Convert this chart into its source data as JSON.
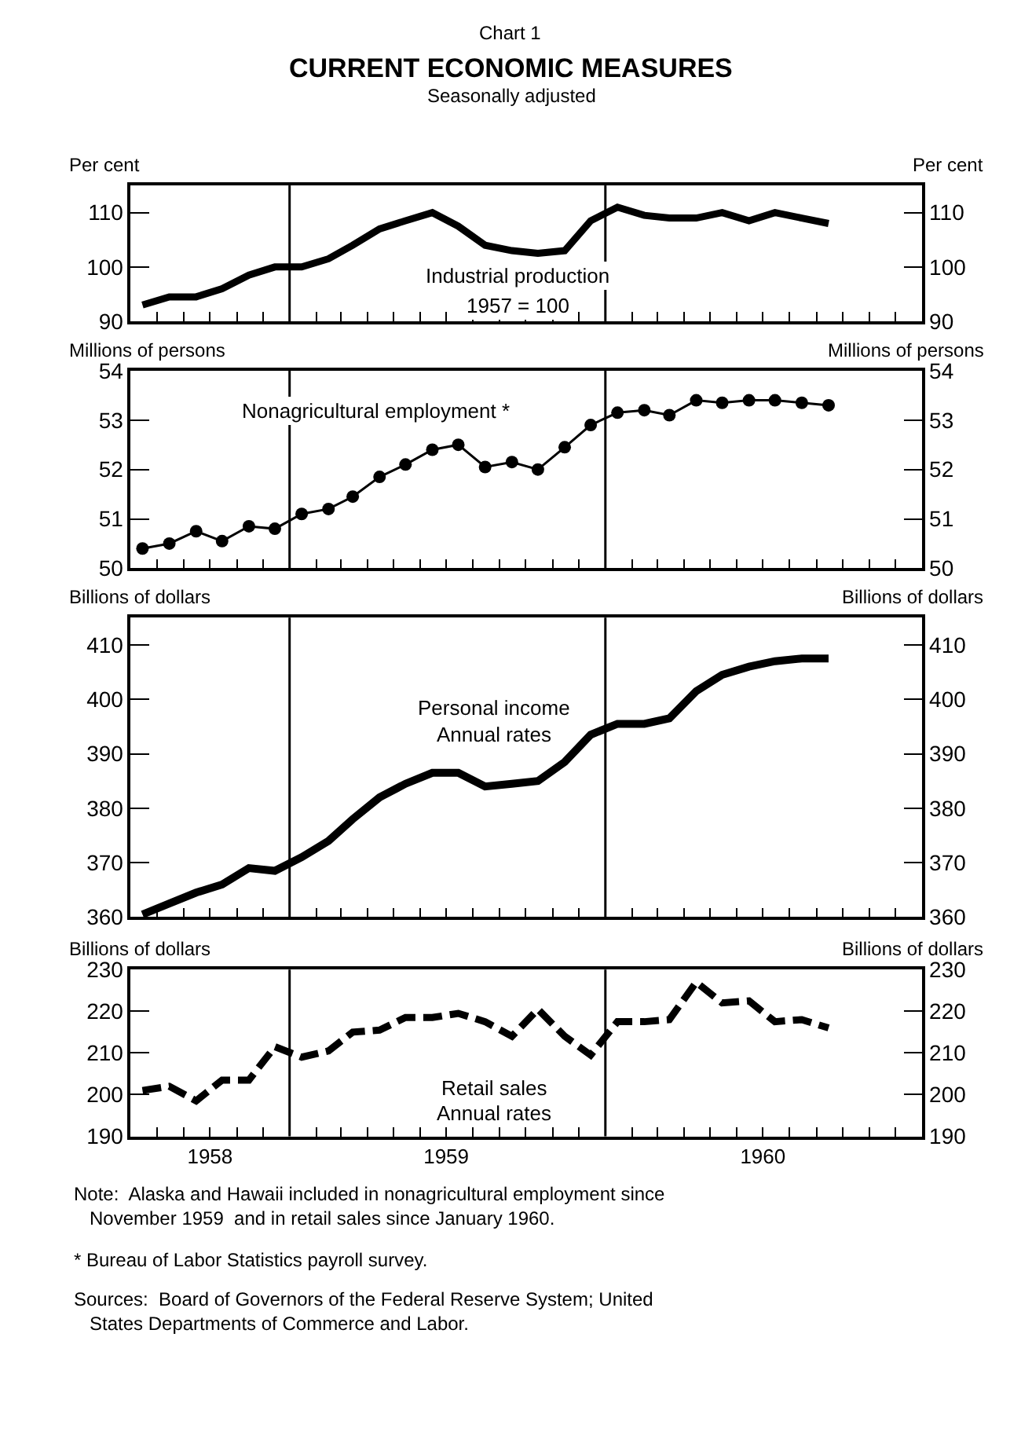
{
  "chart_data": [
    {
      "type": "line",
      "title": "CURRENT ECONOMIC MEASURES",
      "subtitle": "Seasonally adjusted",
      "ylabel": "Per cent",
      "y2label": "Per cent",
      "annotations": [
        "Chart 1",
        "1957 = 100"
      ],
      "x": [
        "1958-07-15",
        "1958-08-15",
        "1958-09-15",
        "1958-10-15",
        "1958-11-15",
        "1958-12-15",
        "1959-01-15",
        "1959-02-15",
        "1959-03-15",
        "1959-04-15",
        "1959-05-15",
        "1959-06-15",
        "1959-07-15",
        "1959-08-15",
        "1959-09-15",
        "1959-10-15",
        "1959-11-15",
        "1959-12-15",
        "1960-01-15",
        "1960-02-15",
        "1960-03-15",
        "1960-04-15",
        "1960-05-15",
        "1960-06-15",
        "1960-07-15",
        "1960-08-15",
        "1960-09-15"
      ],
      "xlim": [
        "1958-07-01",
        "1961-01-01"
      ],
      "xticks": [
        {
          "value": "1958-08-01",
          "label": null
        },
        {
          "value": "1958-09-01",
          "label": null
        },
        {
          "value": "1958-10-01",
          "label": null
        },
        {
          "value": "1958-11-01",
          "label": null
        },
        {
          "value": "1958-12-01",
          "label": null
        },
        {
          "value": "1959-02-01",
          "label": null
        },
        {
          "value": "1959-03-01",
          "label": null
        },
        {
          "value": "1959-04-01",
          "label": null
        },
        {
          "value": "1959-05-01",
          "label": null
        },
        {
          "value": "1959-06-01",
          "label": null
        },
        {
          "value": "1959-07-01",
          "label": null
        },
        {
          "value": "1959-08-01",
          "label": null
        },
        {
          "value": "1959-09-01",
          "label": null
        },
        {
          "value": "1959-10-01",
          "label": null
        },
        {
          "value": "1959-11-01",
          "label": null
        },
        {
          "value": "1959-12-01",
          "label": null
        },
        {
          "value": "1960-02-01",
          "label": null
        },
        {
          "value": "1960-03-01",
          "label": null
        },
        {
          "value": "1960-04-01",
          "label": null
        },
        {
          "value": "1960-05-01",
          "label": null
        },
        {
          "value": "1960-06-01",
          "label": null
        },
        {
          "value": "1960-07-01",
          "label": null
        },
        {
          "value": "1960-08-01",
          "label": null
        },
        {
          "value": "1960-09-01",
          "label": null
        },
        {
          "value": "1960-10-01",
          "label": null
        },
        {
          "value": "1960-11-01",
          "label": null
        },
        {
          "value": "1960-12-01",
          "label": null
        }
      ],
      "ylim": [
        90,
        115
      ],
      "yticks": [
        90,
        100,
        110
      ],
      "y2lim": [
        90,
        115
      ],
      "y2ticks": [
        90,
        100,
        110
      ],
      "tick_labels": "y",
      "line_style": "solid",
      "marker": "none",
      "ref_lines": [
        {
          "axis": "x",
          "value": "1959-01-01",
          "color": "#000000"
        },
        {
          "axis": "x",
          "value": "1960-01-01",
          "color": "#000000"
        }
      ],
      "series": [
        {
          "name": "Industrial production",
          "color": "#000000",
          "values": [
            93,
            94.5,
            94.5,
            96,
            98.5,
            100,
            100,
            101.5,
            104,
            107,
            108.5,
            110,
            107.5,
            104,
            103,
            102.5,
            103,
            108.5,
            111,
            109.5,
            109,
            109,
            110,
            108.5,
            110,
            109,
            108
          ]
        }
      ]
    },
    {
      "type": "line",
      "ylabel": "Millions of persons",
      "y2label": "Millions of persons",
      "x": [
        "1958-07-15",
        "1958-08-15",
        "1958-09-15",
        "1958-10-15",
        "1958-11-15",
        "1958-12-15",
        "1959-01-15",
        "1959-02-15",
        "1959-03-15",
        "1959-04-15",
        "1959-05-15",
        "1959-06-15",
        "1959-07-15",
        "1959-08-15",
        "1959-09-15",
        "1959-10-15",
        "1959-11-15",
        "1959-12-15",
        "1960-01-15",
        "1960-02-15",
        "1960-03-15",
        "1960-04-15",
        "1960-05-15",
        "1960-06-15",
        "1960-07-15",
        "1960-08-15",
        "1960-09-15"
      ],
      "xlim": [
        "1958-07-01",
        "1961-01-01"
      ],
      "xticks": [
        {
          "value": "1958-08-01",
          "label": null
        },
        {
          "value": "1958-09-01",
          "label": null
        },
        {
          "value": "1958-10-01",
          "label": null
        },
        {
          "value": "1958-11-01",
          "label": null
        },
        {
          "value": "1958-12-01",
          "label": null
        },
        {
          "value": "1959-02-01",
          "label": null
        },
        {
          "value": "1959-03-01",
          "label": null
        },
        {
          "value": "1959-04-01",
          "label": null
        },
        {
          "value": "1959-05-01",
          "label": null
        },
        {
          "value": "1959-06-01",
          "label": null
        },
        {
          "value": "1959-07-01",
          "label": null
        },
        {
          "value": "1959-08-01",
          "label": null
        },
        {
          "value": "1959-09-01",
          "label": null
        },
        {
          "value": "1959-10-01",
          "label": null
        },
        {
          "value": "1959-11-01",
          "label": null
        },
        {
          "value": "1959-12-01",
          "label": null
        },
        {
          "value": "1960-02-01",
          "label": null
        },
        {
          "value": "1960-03-01",
          "label": null
        },
        {
          "value": "1960-04-01",
          "label": null
        },
        {
          "value": "1960-05-01",
          "label": null
        },
        {
          "value": "1960-06-01",
          "label": null
        },
        {
          "value": "1960-07-01",
          "label": null
        },
        {
          "value": "1960-08-01",
          "label": null
        },
        {
          "value": "1960-09-01",
          "label": null
        },
        {
          "value": "1960-10-01",
          "label": null
        },
        {
          "value": "1960-11-01",
          "label": null
        },
        {
          "value": "1960-12-01",
          "label": null
        }
      ],
      "ylim": [
        50,
        54
      ],
      "yticks": [
        50,
        51,
        52,
        53,
        54
      ],
      "y2lim": [
        50,
        54
      ],
      "y2ticks": [
        50,
        51,
        52,
        53,
        54
      ],
      "tick_labels": "y",
      "line_style": "solid",
      "marker": "circle",
      "ref_lines": [
        {
          "axis": "x",
          "value": "1959-01-01",
          "color": "#000000"
        },
        {
          "axis": "x",
          "value": "1960-01-01",
          "color": "#000000"
        }
      ],
      "series": [
        {
          "name": "Nonagricultural employment *",
          "color": "#000000",
          "values": [
            50.4,
            50.5,
            50.75,
            50.55,
            50.85,
            50.8,
            51.1,
            51.2,
            51.45,
            51.85,
            52.1,
            52.4,
            52.5,
            52.05,
            52.15,
            52.0,
            52.45,
            52.9,
            53.15,
            53.2,
            53.1,
            53.4,
            53.35,
            53.4,
            53.4,
            53.35,
            53.3
          ]
        }
      ]
    },
    {
      "type": "line",
      "ylabel": "Billions of dollars",
      "y2label": "Billions of dollars",
      "annotations": [
        "Annual rates"
      ],
      "x": [
        "1958-07-15",
        "1958-08-15",
        "1958-09-15",
        "1958-10-15",
        "1958-11-15",
        "1958-12-15",
        "1959-01-15",
        "1959-02-15",
        "1959-03-15",
        "1959-04-15",
        "1959-05-15",
        "1959-06-15",
        "1959-07-15",
        "1959-08-15",
        "1959-09-15",
        "1959-10-15",
        "1959-11-15",
        "1959-12-15",
        "1960-01-15",
        "1960-02-15",
        "1960-03-15",
        "1960-04-15",
        "1960-05-15",
        "1960-06-15",
        "1960-07-15",
        "1960-08-15",
        "1960-09-15"
      ],
      "xlim": [
        "1958-07-01",
        "1961-01-01"
      ],
      "xticks": [
        {
          "value": "1958-08-01",
          "label": null
        },
        {
          "value": "1958-09-01",
          "label": null
        },
        {
          "value": "1958-10-01",
          "label": null
        },
        {
          "value": "1958-11-01",
          "label": null
        },
        {
          "value": "1958-12-01",
          "label": null
        },
        {
          "value": "1959-02-01",
          "label": null
        },
        {
          "value": "1959-03-01",
          "label": null
        },
        {
          "value": "1959-04-01",
          "label": null
        },
        {
          "value": "1959-05-01",
          "label": null
        },
        {
          "value": "1959-06-01",
          "label": null
        },
        {
          "value": "1959-07-01",
          "label": null
        },
        {
          "value": "1959-08-01",
          "label": null
        },
        {
          "value": "1959-09-01",
          "label": null
        },
        {
          "value": "1959-10-01",
          "label": null
        },
        {
          "value": "1959-11-01",
          "label": null
        },
        {
          "value": "1959-12-01",
          "label": null
        },
        {
          "value": "1960-02-01",
          "label": null
        },
        {
          "value": "1960-03-01",
          "label": null
        },
        {
          "value": "1960-04-01",
          "label": null
        },
        {
          "value": "1960-05-01",
          "label": null
        },
        {
          "value": "1960-06-01",
          "label": null
        },
        {
          "value": "1960-07-01",
          "label": null
        },
        {
          "value": "1960-08-01",
          "label": null
        },
        {
          "value": "1960-09-01",
          "label": null
        },
        {
          "value": "1960-10-01",
          "label": null
        },
        {
          "value": "1960-11-01",
          "label": null
        },
        {
          "value": "1960-12-01",
          "label": null
        }
      ],
      "ylim": [
        360,
        415
      ],
      "yticks": [
        360,
        370,
        380,
        390,
        400,
        410
      ],
      "y2lim": [
        360,
        415
      ],
      "y2ticks": [
        360,
        370,
        380,
        390,
        400,
        410
      ],
      "tick_labels": "y",
      "line_style": "solid",
      "marker": "none",
      "ref_lines": [
        {
          "axis": "x",
          "value": "1959-01-01",
          "color": "#000000"
        },
        {
          "axis": "x",
          "value": "1960-01-01",
          "color": "#000000"
        }
      ],
      "series": [
        {
          "name": "Personal income",
          "color": "#000000",
          "values": [
            360.5,
            362.5,
            364.5,
            366,
            369,
            368.5,
            371,
            374,
            378,
            382,
            384.5,
            386.5,
            386.5,
            384,
            384.5,
            385,
            388.5,
            393.5,
            395.5,
            395.5,
            396.5,
            401.5,
            404.5,
            406,
            407,
            407.5,
            407.5
          ]
        }
      ]
    },
    {
      "type": "line",
      "ylabel": "Billions of dollars",
      "y2label": "Billions of dollars",
      "annotations": [
        "Annual rates",
        "Note:  Alaska and Hawaii included in nonagricultural employment since November 1959  and in retail sales since January 1960.",
        "* Bureau of Labor Statistics payroll survey.",
        "Sources:  Board of Governors of the Federal Reserve System; United States Departments of Commerce and Labor."
      ],
      "x": [
        "1958-07-15",
        "1958-08-15",
        "1958-09-15",
        "1958-10-15",
        "1958-11-15",
        "1958-12-15",
        "1959-01-15",
        "1959-02-15",
        "1959-03-15",
        "1959-04-15",
        "1959-05-15",
        "1959-06-15",
        "1959-07-15",
        "1959-08-15",
        "1959-09-15",
        "1959-10-15",
        "1959-11-15",
        "1959-12-15",
        "1960-01-15",
        "1960-02-15",
        "1960-03-15",
        "1960-04-15",
        "1960-05-15",
        "1960-06-15",
        "1960-07-15",
        "1960-08-15",
        "1960-09-15"
      ],
      "xlim": [
        "1958-07-01",
        "1961-01-01"
      ],
      "xticks": [
        {
          "value": "1958-08-01",
          "label": null
        },
        {
          "value": "1958-09-01",
          "label": null
        },
        {
          "value": "1958-10-01",
          "label": "1958"
        },
        {
          "value": "1958-11-01",
          "label": null
        },
        {
          "value": "1958-12-01",
          "label": null
        },
        {
          "value": "1959-02-01",
          "label": null
        },
        {
          "value": "1959-03-01",
          "label": null
        },
        {
          "value": "1959-04-01",
          "label": null
        },
        {
          "value": "1959-05-01",
          "label": null
        },
        {
          "value": "1959-06-01",
          "label": null
        },
        {
          "value": "1959-07-01",
          "label": "1959"
        },
        {
          "value": "1959-08-01",
          "label": null
        },
        {
          "value": "1959-09-01",
          "label": null
        },
        {
          "value": "1959-10-01",
          "label": null
        },
        {
          "value": "1959-11-01",
          "label": null
        },
        {
          "value": "1959-12-01",
          "label": null
        },
        {
          "value": "1960-02-01",
          "label": null
        },
        {
          "value": "1960-03-01",
          "label": null
        },
        {
          "value": "1960-04-01",
          "label": null
        },
        {
          "value": "1960-05-01",
          "label": null
        },
        {
          "value": "1960-06-01",
          "label": null
        },
        {
          "value": "1960-07-01",
          "label": "1960"
        },
        {
          "value": "1960-08-01",
          "label": null
        },
        {
          "value": "1960-09-01",
          "label": null
        },
        {
          "value": "1960-10-01",
          "label": null
        },
        {
          "value": "1960-11-01",
          "label": null
        },
        {
          "value": "1960-12-01",
          "label": null
        }
      ],
      "ylim": [
        190,
        230
      ],
      "yticks": [
        190,
        200,
        210,
        220,
        230
      ],
      "y2lim": [
        190,
        230
      ],
      "y2ticks": [
        190,
        200,
        210,
        220,
        230
      ],
      "line_style": "dashed",
      "marker": "none",
      "ref_lines": [
        {
          "axis": "x",
          "value": "1959-01-01",
          "color": "#000000"
        },
        {
          "axis": "x",
          "value": "1960-01-01",
          "color": "#000000"
        }
      ],
      "series": [
        {
          "name": "Retail sales",
          "color": "#000000",
          "values": [
            201,
            202,
            198.5,
            203.5,
            203.5,
            211.5,
            209,
            210.5,
            215,
            215.5,
            218.5,
            218.5,
            219.5,
            217.5,
            214,
            220.5,
            214,
            209.5,
            217.5,
            217.5,
            218,
            227,
            222,
            222.5,
            217.5,
            218,
            216
          ]
        }
      ]
    }
  ]
}
